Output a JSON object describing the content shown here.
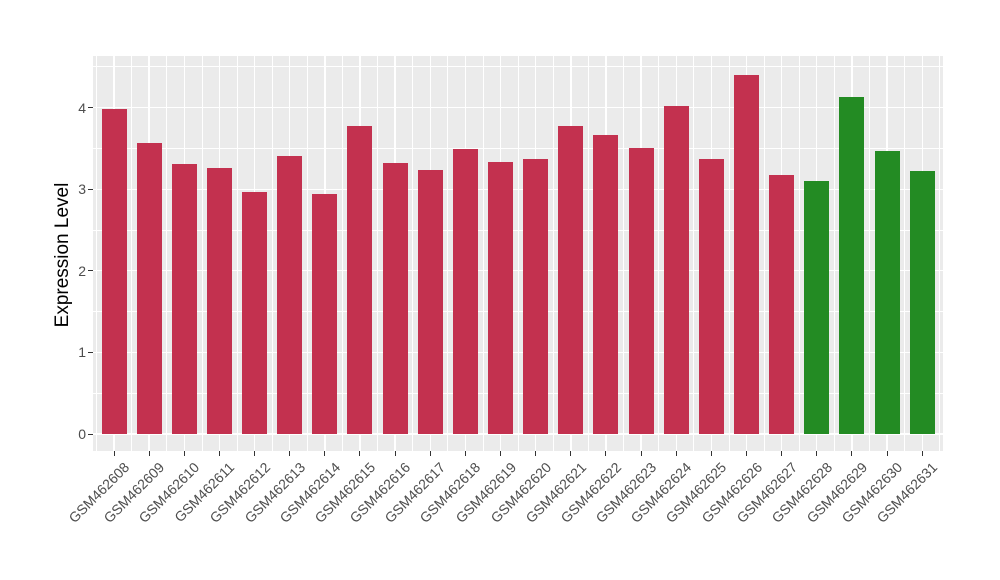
{
  "style": {
    "figure_background": "#FFFFFF",
    "panel_background": "#EBEBEB",
    "grid_color": "#FFFFFF",
    "axis_text_color": "#4D4D4D",
    "axis_title_color": "#000000",
    "tick_mark_color": "#333333",
    "bar_red": "#C3314F",
    "bar_green": "#238B23"
  },
  "chart_data": {
    "type": "bar",
    "title": "",
    "xlabel": "",
    "ylabel": "Expression Level",
    "categories": [
      "GSM462608",
      "GSM462609",
      "GSM462610",
      "GSM462611",
      "GSM462612",
      "GSM462613",
      "GSM462614",
      "GSM462615",
      "GSM462616",
      "GSM462617",
      "GSM462618",
      "GSM462619",
      "GSM462620",
      "GSM462621",
      "GSM462622",
      "GSM462623",
      "GSM462624",
      "GSM462625",
      "GSM462626",
      "GSM462627",
      "GSM462628",
      "GSM462629",
      "GSM462630",
      "GSM462631"
    ],
    "values": [
      3.98,
      3.57,
      3.31,
      3.26,
      2.96,
      3.41,
      2.94,
      3.77,
      3.32,
      3.24,
      3.49,
      3.33,
      3.37,
      3.77,
      3.66,
      3.5,
      4.02,
      3.37,
      4.4,
      3.18,
      3.1,
      4.13,
      3.47,
      3.22
    ],
    "bar_colors": [
      "#C3314F",
      "#C3314F",
      "#C3314F",
      "#C3314F",
      "#C3314F",
      "#C3314F",
      "#C3314F",
      "#C3314F",
      "#C3314F",
      "#C3314F",
      "#C3314F",
      "#C3314F",
      "#C3314F",
      "#C3314F",
      "#C3314F",
      "#C3314F",
      "#C3314F",
      "#C3314F",
      "#C3314F",
      "#C3314F",
      "#238B23",
      "#238B23",
      "#238B23",
      "#238B23"
    ],
    "yticks": [
      0,
      1,
      2,
      3,
      4
    ],
    "ylim": [
      -0.21,
      4.6
    ],
    "grid": {
      "major": true,
      "minor": true,
      "color": "#FFFFFF",
      "on_panel": "#EBEBEB"
    },
    "legend": "none",
    "x_tick_rotation_deg": 45
  }
}
